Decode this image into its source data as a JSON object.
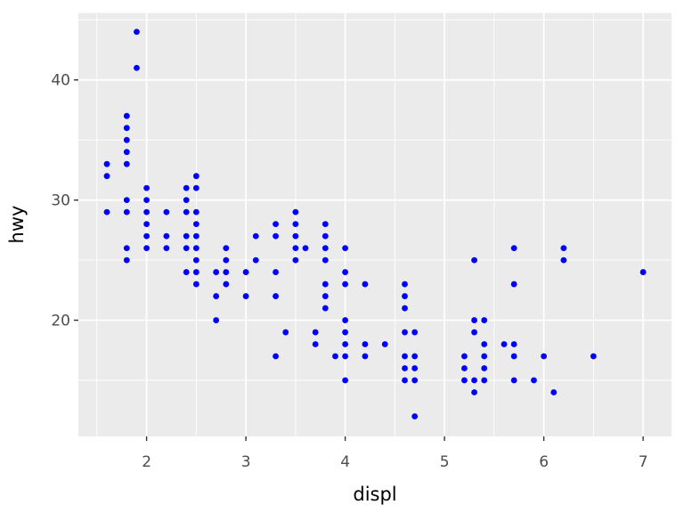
{
  "chart_data": {
    "type": "scatter",
    "title": "",
    "xlabel": "displ",
    "ylabel": "hwy",
    "x_ticks": [
      2,
      3,
      4,
      5,
      6,
      7
    ],
    "y_ticks": [
      20,
      30,
      40
    ],
    "x_minor_gridlines": [
      1.5,
      2.5,
      3.5,
      4.5,
      5.5,
      6.5
    ],
    "y_minor_gridlines": [
      15,
      25,
      35,
      45
    ],
    "xlim": [
      1.313,
      7.286
    ],
    "ylim": [
      10.33,
      45.57
    ],
    "grid": "on",
    "legend_position": "none",
    "colors": {
      "point": "#0000FF",
      "panel_background": "#EBEBEB",
      "gridline": "#FFFFFF",
      "tick_mark": "#333333",
      "tick_label": "#4D4D4D",
      "axis_title": "#000000",
      "outer_background": "#FFFFFF"
    },
    "points": [
      [
        1.6,
        29
      ],
      [
        1.6,
        32
      ],
      [
        1.6,
        33
      ],
      [
        1.8,
        25
      ],
      [
        1.8,
        26
      ],
      [
        1.8,
        29
      ],
      [
        1.8,
        30
      ],
      [
        1.8,
        33
      ],
      [
        1.8,
        34
      ],
      [
        1.8,
        35
      ],
      [
        1.8,
        36
      ],
      [
        1.8,
        37
      ],
      [
        1.9,
        41
      ],
      [
        1.9,
        44
      ],
      [
        2.0,
        26
      ],
      [
        2.0,
        27
      ],
      [
        2.0,
        28
      ],
      [
        2.0,
        29
      ],
      [
        2.0,
        30
      ],
      [
        2.0,
        31
      ],
      [
        2.2,
        26
      ],
      [
        2.2,
        27
      ],
      [
        2.2,
        29
      ],
      [
        2.4,
        24
      ],
      [
        2.4,
        26
      ],
      [
        2.4,
        27
      ],
      [
        2.4,
        29
      ],
      [
        2.4,
        30
      ],
      [
        2.4,
        31
      ],
      [
        2.5,
        23
      ],
      [
        2.5,
        24
      ],
      [
        2.5,
        25
      ],
      [
        2.5,
        26
      ],
      [
        2.5,
        27
      ],
      [
        2.5,
        28
      ],
      [
        2.5,
        29
      ],
      [
        2.5,
        31
      ],
      [
        2.5,
        32
      ],
      [
        2.7,
        20
      ],
      [
        2.7,
        22
      ],
      [
        2.7,
        24
      ],
      [
        2.8,
        23
      ],
      [
        2.8,
        24
      ],
      [
        2.8,
        25
      ],
      [
        2.8,
        26
      ],
      [
        3.0,
        22
      ],
      [
        3.0,
        24
      ],
      [
        3.1,
        25
      ],
      [
        3.1,
        27
      ],
      [
        3.3,
        17
      ],
      [
        3.3,
        22
      ],
      [
        3.3,
        24
      ],
      [
        3.3,
        27
      ],
      [
        3.3,
        28
      ],
      [
        3.4,
        19
      ],
      [
        3.5,
        25
      ],
      [
        3.5,
        26
      ],
      [
        3.5,
        27
      ],
      [
        3.5,
        28
      ],
      [
        3.5,
        29
      ],
      [
        3.6,
        26
      ],
      [
        3.7,
        18
      ],
      [
        3.7,
        19
      ],
      [
        3.8,
        21
      ],
      [
        3.8,
        22
      ],
      [
        3.8,
        23
      ],
      [
        3.8,
        25
      ],
      [
        3.8,
        26
      ],
      [
        3.8,
        27
      ],
      [
        3.8,
        28
      ],
      [
        3.9,
        17
      ],
      [
        4.0,
        15
      ],
      [
        4.0,
        17
      ],
      [
        4.0,
        18
      ],
      [
        4.0,
        19
      ],
      [
        4.0,
        20
      ],
      [
        4.0,
        23
      ],
      [
        4.0,
        24
      ],
      [
        4.0,
        26
      ],
      [
        4.2,
        17
      ],
      [
        4.2,
        18
      ],
      [
        4.2,
        23
      ],
      [
        4.4,
        18
      ],
      [
        4.6,
        15
      ],
      [
        4.6,
        16
      ],
      [
        4.6,
        17
      ],
      [
        4.6,
        19
      ],
      [
        4.6,
        21
      ],
      [
        4.6,
        22
      ],
      [
        4.6,
        23
      ],
      [
        4.7,
        12
      ],
      [
        4.7,
        15
      ],
      [
        4.7,
        16
      ],
      [
        4.7,
        17
      ],
      [
        4.7,
        19
      ],
      [
        5.2,
        15
      ],
      [
        5.2,
        16
      ],
      [
        5.2,
        17
      ],
      [
        5.3,
        14
      ],
      [
        5.3,
        15
      ],
      [
        5.3,
        19
      ],
      [
        5.3,
        20
      ],
      [
        5.3,
        25
      ],
      [
        5.4,
        15
      ],
      [
        5.4,
        16
      ],
      [
        5.4,
        17
      ],
      [
        5.4,
        18
      ],
      [
        5.4,
        20
      ],
      [
        5.6,
        18
      ],
      [
        5.7,
        15
      ],
      [
        5.7,
        17
      ],
      [
        5.7,
        18
      ],
      [
        5.7,
        23
      ],
      [
        5.7,
        26
      ],
      [
        5.9,
        15
      ],
      [
        6.0,
        17
      ],
      [
        6.1,
        14
      ],
      [
        6.2,
        25
      ],
      [
        6.2,
        26
      ],
      [
        6.5,
        17
      ],
      [
        7.0,
        24
      ]
    ]
  }
}
